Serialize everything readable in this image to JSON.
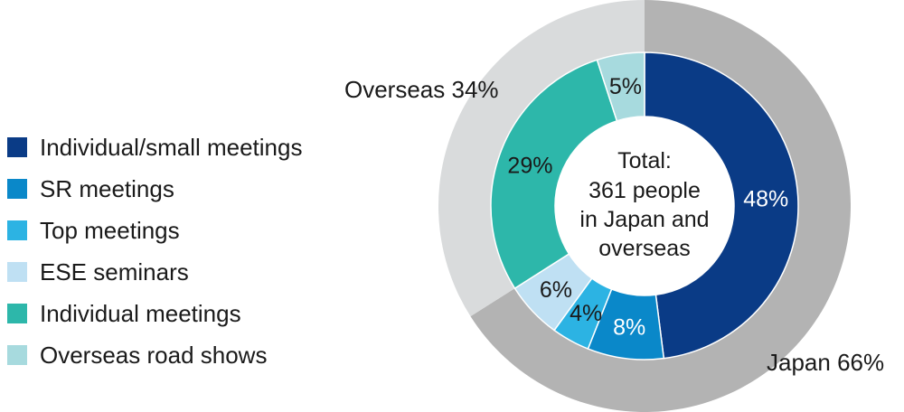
{
  "chart_data": {
    "type": "pie",
    "center_text": [
      "Total:",
      "361 people",
      "in Japan and",
      "overseas"
    ],
    "outer": {
      "slices": [
        {
          "label": "Japan 66%",
          "value": 66,
          "color": "#b3b3b3"
        },
        {
          "label": "Overseas 34%",
          "value": 34,
          "color": "#d9dbdc"
        }
      ]
    },
    "inner": {
      "slices": [
        {
          "name": "Individual/small meetings",
          "value": 48,
          "label": "48%",
          "color": "#0a3b86",
          "label_color": "#ffffff"
        },
        {
          "name": "SR meetings",
          "value": 8,
          "label": "8%",
          "color": "#0a88c9",
          "label_color": "#ffffff"
        },
        {
          "name": "Top meetings",
          "value": 4,
          "label": "4%",
          "color": "#2cb3e3",
          "label_color": "#1a1a1a"
        },
        {
          "name": "ESE seminars",
          "value": 6,
          "label": "6%",
          "color": "#bfe0f3",
          "label_color": "#1a1a1a"
        },
        {
          "name": "Individual meetings",
          "value": 29,
          "label": "29%",
          "color": "#2db7aa",
          "label_color": "#1a1a1a"
        },
        {
          "name": "Overseas road shows",
          "value": 5,
          "label": "5%",
          "color": "#a7dade",
          "label_color": "#1a1a1a"
        }
      ]
    },
    "legend": {
      "placement": "left",
      "items": [
        {
          "label": "Individual/small meetings",
          "color": "#0a3b86"
        },
        {
          "label": "SR meetings",
          "color": "#0a88c9"
        },
        {
          "label": "Top meetings",
          "color": "#2cb3e3"
        },
        {
          "label": "ESE seminars",
          "color": "#bfe0f3"
        },
        {
          "label": "Individual meetings",
          "color": "#2db7aa"
        },
        {
          "label": "Overseas road shows",
          "color": "#a7dade"
        }
      ]
    }
  }
}
